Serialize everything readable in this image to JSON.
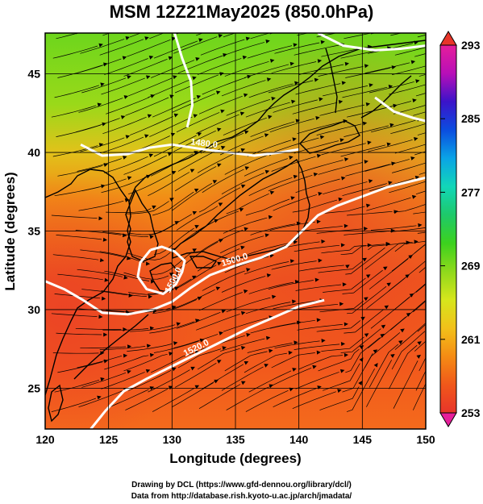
{
  "title": "MSM 12Z21May2025 (850.0hPa)",
  "chart_data": {
    "type": "map",
    "xlabel": "Longitude (degrees)",
    "ylabel": "Latitude  (degrees)",
    "xlim": [
      120,
      150
    ],
    "ylim": [
      22.4,
      47.6
    ],
    "x_ticks": [
      120,
      125,
      130,
      135,
      140,
      145,
      150
    ],
    "y_ticks": [
      25,
      30,
      35,
      40,
      45
    ],
    "grid": true,
    "colorbar": {
      "min": 253,
      "max": 293,
      "tick_labels": [
        "293",
        "285",
        "277",
        "269",
        "261",
        "253"
      ],
      "tick_values": [
        293,
        285,
        277,
        269,
        261,
        253
      ],
      "colors": [
        "#e61e9a",
        "#b80fb8",
        "#3b13c9",
        "#0b4de0",
        "#0aa4e6",
        "#12d6b8",
        "#1ec96a",
        "#3cd21e",
        "#8fd91c",
        "#d6e61c",
        "#f2c11a",
        "#f58c14",
        "#f0581a",
        "#e8352a"
      ]
    },
    "contour_labels": [
      "1480.0",
      "1500.0",
      "1520.0"
    ],
    "contours": [
      {
        "label": "1480.0",
        "points": [
          [
            122.8,
            40.5
          ],
          [
            124.5,
            39.8
          ],
          [
            126.5,
            39.9
          ],
          [
            128.2,
            40.3
          ],
          [
            130,
            40.5
          ],
          [
            132.5,
            40.2
          ],
          [
            134.5,
            40.0
          ],
          [
            136.5,
            39.8
          ],
          [
            138.5,
            40.0
          ],
          [
            140,
            40.2
          ]
        ]
      },
      {
        "label": "1500.0",
        "points": [
          [
            120,
            31.8
          ],
          [
            121.5,
            31.3
          ],
          [
            123,
            30.6
          ],
          [
            124.5,
            29.8
          ],
          [
            126.5,
            29.7
          ],
          [
            128.5,
            30.0
          ],
          [
            130,
            30.5
          ],
          [
            131.5,
            31.4
          ],
          [
            133,
            32.2
          ],
          [
            135,
            32.8
          ],
          [
            137,
            33.3
          ],
          [
            139,
            34.0
          ],
          [
            140.5,
            35.2
          ],
          [
            141.5,
            36.0
          ],
          [
            143,
            36.6
          ],
          [
            145,
            37.2
          ],
          [
            147,
            37.8
          ],
          [
            149,
            38.2
          ],
          [
            150,
            38.4
          ]
        ]
      },
      {
        "label": "1500.0",
        "points": [
          [
            128.3,
            33.8
          ],
          [
            127.5,
            33.0
          ],
          [
            127.3,
            32.1
          ],
          [
            128.0,
            31.3
          ],
          [
            129.3,
            31.0
          ],
          [
            130.3,
            31.6
          ],
          [
            130.8,
            32.4
          ],
          [
            131.0,
            33.1
          ],
          [
            130.2,
            33.7
          ],
          [
            129.2,
            34.0
          ],
          [
            128.3,
            33.8
          ]
        ]
      },
      {
        "label": "1520.0",
        "points": [
          [
            123.6,
            22.4
          ],
          [
            124.8,
            23.6
          ],
          [
            126.2,
            24.8
          ],
          [
            128,
            25.6
          ],
          [
            130,
            26.4
          ],
          [
            132,
            27.2
          ],
          [
            134,
            28.0
          ],
          [
            136,
            28.8
          ],
          [
            138,
            29.5
          ],
          [
            140,
            30.2
          ],
          [
            142,
            30.6
          ]
        ]
      },
      {
        "label": "",
        "points": [
          [
            130.2,
            47.6
          ],
          [
            130.8,
            46.0
          ],
          [
            131.5,
            44.5
          ],
          [
            131.6,
            43.0
          ],
          [
            131.2,
            41.6
          ]
        ]
      },
      {
        "label": "",
        "points": [
          [
            141.5,
            47.6
          ],
          [
            143.5,
            46.8
          ],
          [
            146,
            46.5
          ],
          [
            148,
            46.6
          ],
          [
            150,
            46.8
          ]
        ]
      },
      {
        "label": "",
        "points": [
          [
            146,
            43.5
          ],
          [
            147.5,
            42.6
          ],
          [
            149,
            42.2
          ],
          [
            150,
            42.0
          ]
        ]
      }
    ]
  }
}
